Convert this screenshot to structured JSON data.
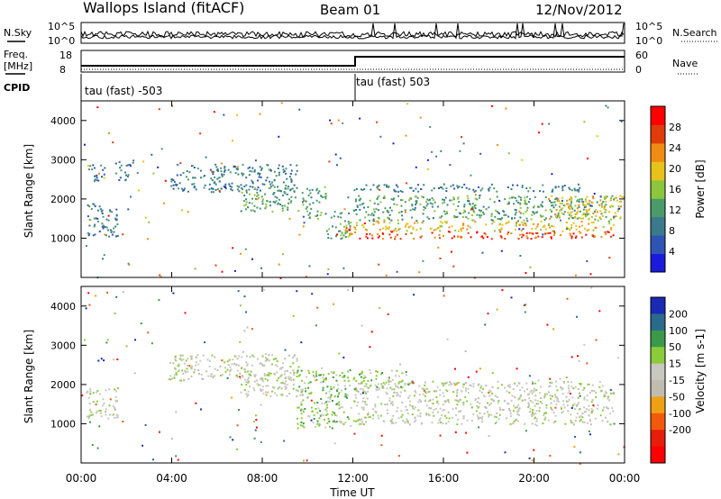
{
  "header": {
    "site": "Wallops Island (fitACF)",
    "beam": "Beam 01",
    "date": "12/Nov/2012"
  },
  "noise_panel": {
    "left_label": "N.Sky",
    "right_label": "N.Search",
    "left_ticks": [
      "10^5",
      "10^0"
    ],
    "right_ticks": [
      "10^5",
      "10^0"
    ]
  },
  "freq_panel": {
    "left_label_line1": "Freq.",
    "left_label_line2": "[MHz]",
    "right_label": "Nave",
    "left_ticks": [
      "18",
      "8"
    ],
    "right_ticks": [
      "60",
      "0"
    ]
  },
  "cpid_panel": {
    "label": "CPID",
    "segments": [
      "tau (fast) -503",
      "tau (fast) 503"
    ]
  },
  "colors": {
    "power_scale": [
      "#1a1adc",
      "#2e55b4",
      "#3a7a8c",
      "#4a9a6a",
      "#8cc63c",
      "#e6c21a",
      "#f08c14",
      "#e03c0a",
      "#ff0000"
    ],
    "velocity_scale": [
      "#1a2ab4",
      "#2a6a8a",
      "#3a9a4a",
      "#8acc3a",
      "#c8c8c0",
      "#c0bdb0",
      "#f0a014",
      "#f05a0a",
      "#e61e0a",
      "#ff0000"
    ]
  },
  "chart_data": [
    {
      "type": "heatmap",
      "name_panel": "power",
      "ylabel": "Slant Range [km]",
      "ylim": [
        0,
        4500
      ],
      "yticks": [
        1000,
        2000,
        3000,
        4000
      ],
      "xlim": [
        0,
        24
      ],
      "colorbar_label": "Power [dB]",
      "colorbar_ticks": [
        4,
        8,
        12,
        16,
        20,
        24,
        28
      ],
      "colorbar_range": [
        0,
        32
      ],
      "bands": [
        {
          "x": [
            0.2,
            1.6
          ],
          "y": [
            1050,
            1900
          ],
          "value": 9
        },
        {
          "x": [
            0.3,
            1.1
          ],
          "y": [
            2450,
            2900
          ],
          "value": 10
        },
        {
          "x": [
            0.7,
            1.0
          ],
          "y": [
            2550,
            2700
          ],
          "value": 22
        },
        {
          "x": [
            1.5,
            2.3
          ],
          "y": [
            2500,
            3000
          ],
          "value": 8
        },
        {
          "x": [
            3.8,
            9.5
          ],
          "y": [
            2200,
            2900
          ],
          "value": 9
        },
        {
          "x": [
            7.0,
            9.8
          ],
          "y": [
            1700,
            2300
          ],
          "value": 13
        },
        {
          "x": [
            9.8,
            10.8
          ],
          "y": [
            1500,
            2300
          ],
          "value": 11
        },
        {
          "x": [
            10.8,
            11.9
          ],
          "y": [
            1000,
            1700
          ],
          "value": 13
        },
        {
          "x": [
            11.5,
            12.0
          ],
          "y": [
            950,
            1300
          ],
          "value": 22
        },
        {
          "x": [
            12.0,
            23.5
          ],
          "y": [
            1000,
            1200
          ],
          "value": 26
        },
        {
          "x": [
            12.0,
            23.5
          ],
          "y": [
            1200,
            1450
          ],
          "value": 20
        },
        {
          "x": [
            12.0,
            23.5
          ],
          "y": [
            1450,
            2100
          ],
          "value": 13
        },
        {
          "x": [
            12.0,
            22.0
          ],
          "y": [
            2200,
            2400
          ],
          "value": 9
        },
        {
          "x": [
            20.5,
            24.0
          ],
          "y": [
            1500,
            2100
          ],
          "value": 20
        }
      ]
    },
    {
      "type": "heatmap",
      "name_panel": "velocity",
      "ylabel": "Slant Range [km]",
      "ylim": [
        0,
        4500
      ],
      "yticks": [
        1000,
        2000,
        3000,
        4000
      ],
      "xlim": [
        0,
        24
      ],
      "xticks": [
        "00:00",
        "04:00",
        "08:00",
        "12:00",
        "16:00",
        "20:00",
        "00:00"
      ],
      "xlabel": "Time UT",
      "colorbar_label": "Velocity [m s-1]",
      "colorbar_ticks": [
        200,
        100,
        50,
        15,
        -15,
        -50,
        -100,
        -200
      ],
      "bands": [
        {
          "x": [
            0.2,
            1.6
          ],
          "y": [
            1150,
            1950
          ],
          "value": 0
        },
        {
          "x": [
            0.6,
            1.0
          ],
          "y": [
            2550,
            2700
          ],
          "value": 200
        },
        {
          "x": [
            3.8,
            9.5
          ],
          "y": [
            2100,
            2800
          ],
          "value": 0
        },
        {
          "x": [
            7.0,
            9.8
          ],
          "y": [
            1700,
            2300
          ],
          "value": 0
        },
        {
          "x": [
            9.5,
            11.9
          ],
          "y": [
            900,
            2400
          ],
          "value": 30
        },
        {
          "x": [
            12.0,
            23.5
          ],
          "y": [
            1000,
            2100
          ],
          "value": 0
        },
        {
          "x": [
            12.0,
            14.5
          ],
          "y": [
            1900,
            2400
          ],
          "value": 30
        }
      ]
    }
  ],
  "cpid_change_hour": 12.1
}
